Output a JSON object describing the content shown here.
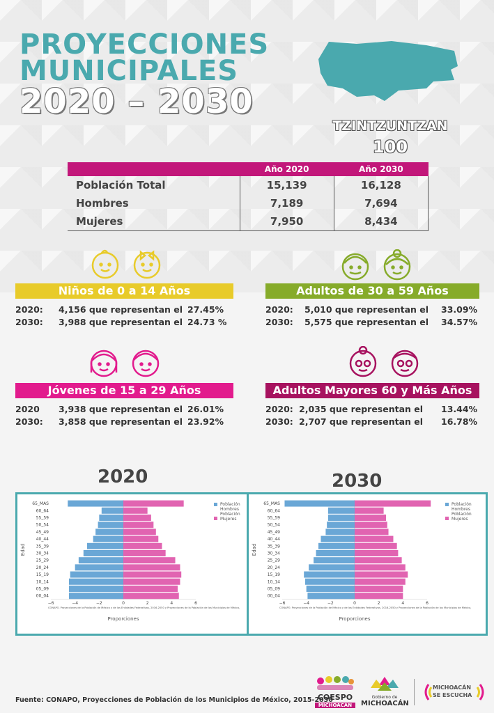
{
  "title": {
    "line1": "PROYECCIONES",
    "line2": "MUNICIPALES",
    "line3": "2020 – 2030"
  },
  "municipality": {
    "name": "TZINTZUNTZAN",
    "code": "100"
  },
  "colors": {
    "teal": "#4aa9ae",
    "magenta": "#c2177a",
    "yellow": "#e8cb2a",
    "green": "#86ab2a",
    "pink": "#e21b8d",
    "plum": "#a7125f",
    "men": "#6aa7d6",
    "women": "#e164b1"
  },
  "table": {
    "headers": [
      "Año 2020",
      "Año 2030"
    ],
    "rows": [
      {
        "label": "Población Total",
        "y2020": "15,139",
        "y2030": "16,128"
      },
      {
        "label": "Hombres",
        "y2020": "7,189",
        "y2030": "7,694"
      },
      {
        "label": "Mujeres",
        "y2020": "7,950",
        "y2030": "8,434"
      }
    ]
  },
  "groups": {
    "ninos": {
      "title": "Niños de 0 a 14 Años",
      "rows": [
        {
          "year": "2020:",
          "text": "4,156 que representan el",
          "pct": "27.45%"
        },
        {
          "year": "2030:",
          "text": "3,988 que representan el",
          "pct": "24.73 %"
        }
      ]
    },
    "adultos": {
      "title": "Adultos de 30 a 59 Años",
      "rows": [
        {
          "year": "2020:",
          "text": "5,010 que representan el",
          "pct": "33.09%"
        },
        {
          "year": "2030:",
          "text": "5,575 que representan el",
          "pct": "34.57%"
        }
      ]
    },
    "jovenes": {
      "title": "Jóvenes de 15 a 29 Años",
      "rows": [
        {
          "year": "2020",
          "text": "3,938 que representan el",
          "pct": "26.01%"
        },
        {
          "year": "2030:",
          "text": "3,858 que representan el",
          "pct": "23.92%"
        }
      ]
    },
    "mayores": {
      "title": "Adultos Mayores  60 y Más Años",
      "rows": [
        {
          "year": "2020:",
          "text": "2,035 que representan el",
          "pct": "13.44%"
        },
        {
          "year": "2030:",
          "text": "2,707 que representan el",
          "pct": "16.78%"
        }
      ]
    }
  },
  "pyramid_labels": {
    "year1": "2020",
    "year2": "2030"
  },
  "chart_data": [
    {
      "type": "bar",
      "orientation": "horizontal-pyramid",
      "categories": [
        "65_MAS",
        "60_64",
        "55_59",
        "50_54",
        "45_49",
        "40_44",
        "35_39",
        "30_34",
        "25_29",
        "20_24",
        "15_19",
        "10_14",
        "05_09",
        "00_04"
      ],
      "series": [
        {
          "name": "Población Hombres",
          "values": [
            -4.6,
            -1.8,
            -2.0,
            -2.1,
            -2.3,
            -2.5,
            -3.0,
            -3.3,
            -3.7,
            -4.0,
            -4.4,
            -4.5,
            -4.5,
            -4.5
          ]
        },
        {
          "name": "Población Mujeres",
          "values": [
            5.0,
            2.0,
            2.3,
            2.5,
            2.7,
            2.9,
            3.2,
            3.5,
            4.3,
            4.7,
            4.8,
            4.7,
            4.5,
            4.6
          ]
        }
      ],
      "xlabel": "Proporciones",
      "ylabel": "Edad",
      "xlim": [
        -6,
        6
      ],
      "xticks": [
        "−6",
        "−4",
        "−2",
        "0",
        "2",
        "4",
        "6"
      ],
      "note": "CONAPO. Proyecciones de la Población de México y de las Entidades Federativas, 2016-2050 y Proyecciones de la Población de los Municipios de México,",
      "legend": "top-right"
    },
    {
      "type": "bar",
      "orientation": "horizontal-pyramid",
      "categories": [
        "65_MAS",
        "60_64",
        "55_59",
        "50_54",
        "45_49",
        "40_44",
        "35_39",
        "30_34",
        "25_29",
        "20_24",
        "15_19",
        "10_14",
        "05_09",
        "00_04"
      ],
      "series": [
        {
          "name": "Población Hombres",
          "values": [
            -5.8,
            -2.2,
            -2.2,
            -2.3,
            -2.4,
            -2.8,
            -3.0,
            -3.2,
            -3.4,
            -3.8,
            -4.2,
            -4.1,
            -4.0,
            -3.9
          ]
        },
        {
          "name": "Población Mujeres",
          "values": [
            6.3,
            2.4,
            2.6,
            2.7,
            2.8,
            3.2,
            3.5,
            3.6,
            3.9,
            4.2,
            4.4,
            4.2,
            4.0,
            4.0
          ]
        }
      ],
      "xlabel": "Proporciones",
      "ylabel": "Edad",
      "xlim": [
        -6,
        6
      ],
      "xticks": [
        "−6",
        "−4",
        "−2",
        "0",
        "2",
        "4",
        "6"
      ],
      "note": "CONAPO. Proyecciones de la Población de México y de las Entidades Federativas, 2016-2050 y Proyecciones de la Población de los Municipios de México,",
      "legend": "top-right"
    }
  ],
  "source": "Fuente: CONAPO, Proyecciones de Población de los Municipios de México, 2015-2030",
  "logos": {
    "coespo": [
      "COESPO",
      "MICHOACÁN"
    ],
    "gobierno": [
      "Gobierno de",
      "MICHOACÁN"
    ],
    "escucha": [
      "MICHOACÁN",
      "SE ESCUCHA"
    ]
  }
}
